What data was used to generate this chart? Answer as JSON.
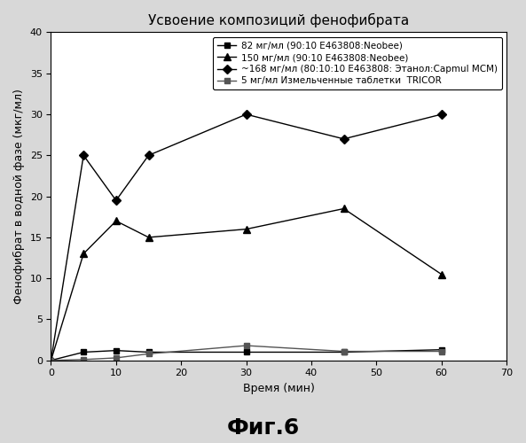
{
  "title": "Усвоение композиций фенофибрата",
  "xlabel": "Время (мин)",
  "ylabel": "Фенофибрат в водной фазе (мкг/мл)",
  "xlim": [
    0,
    70
  ],
  "ylim": [
    0,
    40
  ],
  "xticks": [
    0,
    10,
    20,
    30,
    40,
    50,
    60,
    70
  ],
  "yticks": [
    0,
    5,
    10,
    15,
    20,
    25,
    30,
    35,
    40
  ],
  "series": [
    {
      "label": "82 мг/мл (90:10 E463808:Neobee)",
      "x": [
        0,
        5,
        10,
        15,
        30,
        45,
        60
      ],
      "y": [
        0,
        1.0,
        1.2,
        1.0,
        1.0,
        1.0,
        1.3
      ],
      "marker": "s",
      "color": "#000000",
      "linewidth": 1.0,
      "markersize": 5
    },
    {
      "label": "150 мг/мл (90:10 E463808:Neobee)",
      "x": [
        0,
        5,
        10,
        15,
        30,
        45,
        60
      ],
      "y": [
        0,
        13.0,
        17.0,
        15.0,
        16.0,
        18.5,
        10.5
      ],
      "marker": "^",
      "color": "#000000",
      "linewidth": 1.0,
      "markersize": 6
    },
    {
      "label": "~168 мг/мл (80:10:10 E463808: Этанол:Capmul MCM)",
      "x": [
        0,
        5,
        10,
        15,
        30,
        45,
        60
      ],
      "y": [
        0,
        25.0,
        19.5,
        25.0,
        30.0,
        27.0,
        30.0
      ],
      "marker": "D",
      "color": "#000000",
      "linewidth": 1.0,
      "markersize": 5
    },
    {
      "label": "5 мг/мл Измельченные таблетки  TRICOR",
      "x": [
        0,
        5,
        10,
        15,
        30,
        45,
        60
      ],
      "y": [
        0,
        0.1,
        0.3,
        0.8,
        1.8,
        1.1,
        1.1
      ],
      "marker": "s",
      "color": "#555555",
      "linewidth": 1.0,
      "markersize": 4
    }
  ],
  "legend_fontsize": 7.5,
  "title_fontsize": 11,
  "axis_label_fontsize": 9,
  "tick_fontsize": 8,
  "background_color": "#d8d8d8",
  "plot_bg_color": "#ffffff",
  "fig6_fontsize": 18,
  "fig6_text": "Фиг.6"
}
